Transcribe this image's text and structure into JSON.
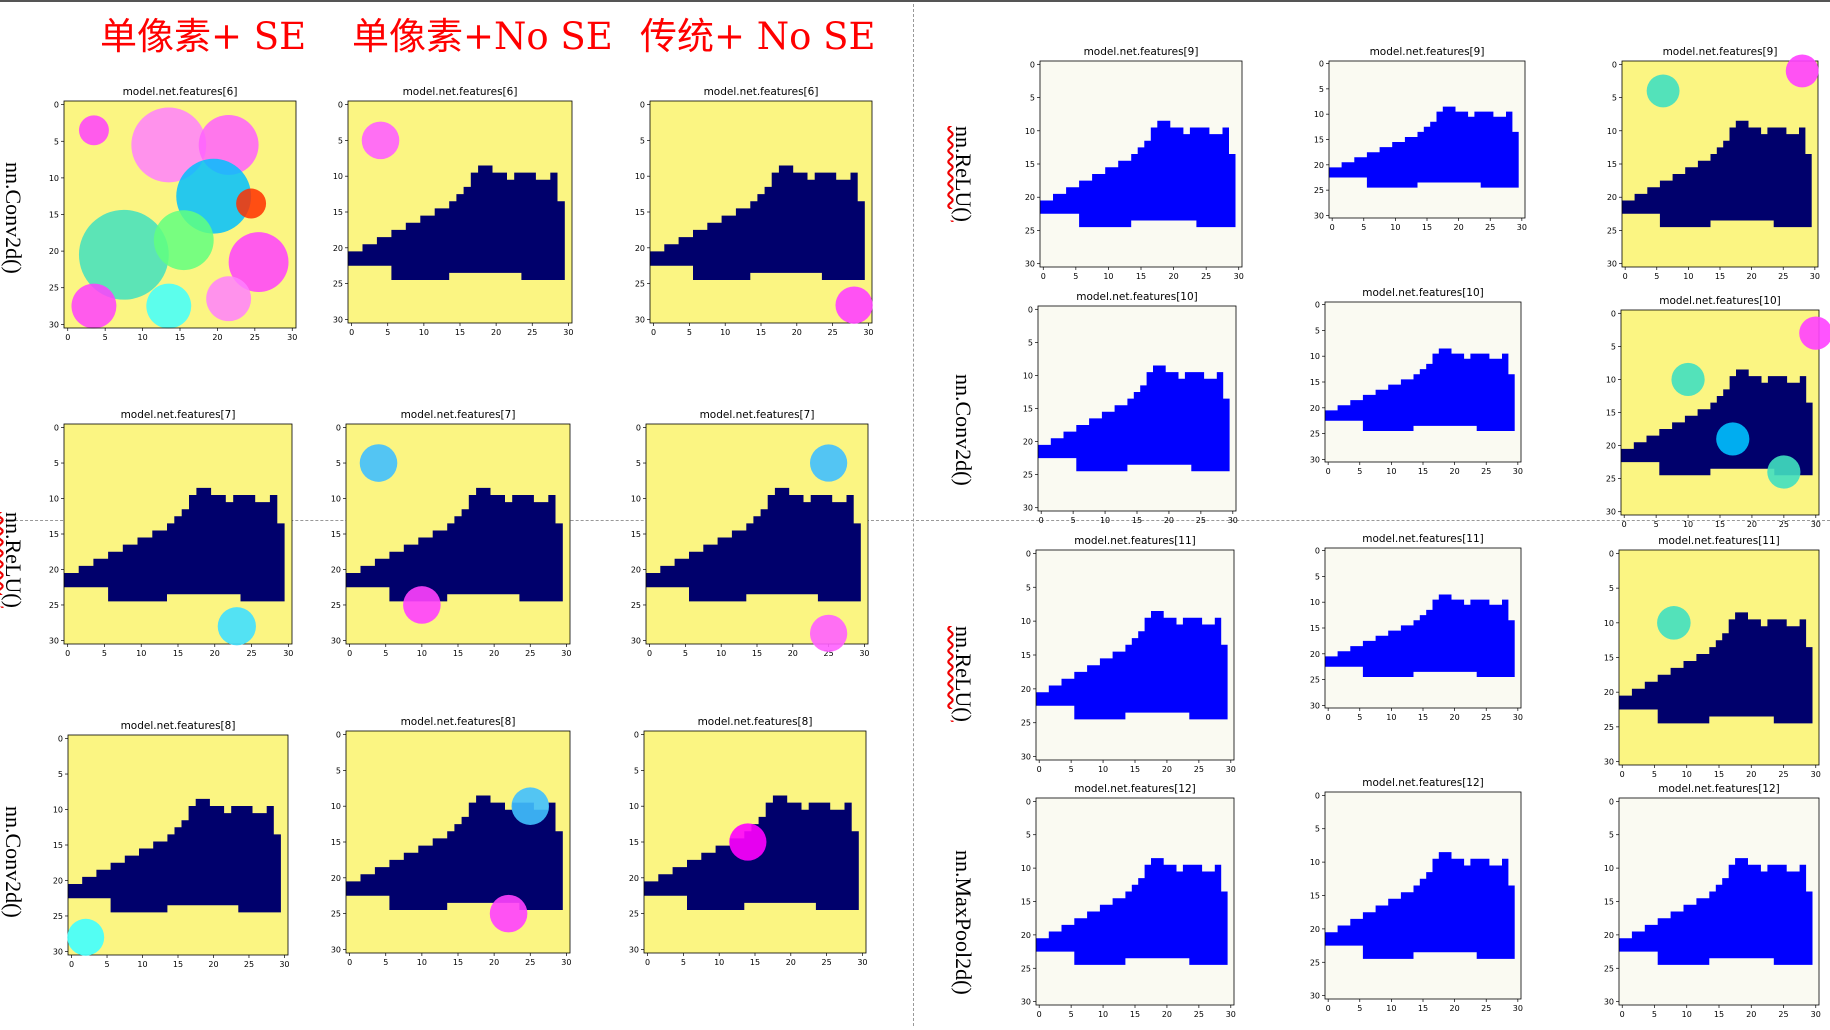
{
  "column_headers": [
    "单像素+ SE",
    "单像素+No SE",
    "传统+ No SE"
  ],
  "left_row_labels": [
    "nn.Conv2d()",
    "nn.ReLU()",
    "nn.Conv2d()"
  ],
  "right_row_labels": [
    "nn.ReLU()",
    "nn.Conv2d()",
    "nn.ReLU()",
    "nn.MaxPool2d()"
  ],
  "colors": {
    "header": "#ff0000",
    "yellow": "#fbf582",
    "navy": "#00006c",
    "blue": "#0000ff",
    "offwhite": "#fafaf2"
  },
  "chart_data": [
    {
      "type": "heatmap",
      "title": "model.net.features[6]",
      "xlim": [
        0,
        31
      ],
      "ylim": [
        31,
        0
      ],
      "xticks": [
        0,
        5,
        10,
        15,
        20,
        25,
        30
      ],
      "yticks": [
        0,
        5,
        10,
        15,
        20,
        25,
        30
      ],
      "colormap": "gist_ncar"
    },
    {
      "type": "heatmap",
      "title": "model.net.features[6]",
      "xlim": [
        0,
        31
      ],
      "ylim": [
        31,
        0
      ],
      "xticks": [
        0,
        5,
        10,
        15,
        20,
        25,
        30
      ],
      "yticks": [
        0,
        5,
        10,
        15,
        20,
        25,
        30
      ],
      "colormap": "gist_ncar"
    },
    {
      "type": "heatmap",
      "title": "model.net.features[6]",
      "xlim": [
        0,
        31
      ],
      "ylim": [
        31,
        0
      ],
      "xticks": [
        0,
        5,
        10,
        15,
        20,
        25,
        30
      ],
      "yticks": [
        0,
        5,
        10,
        15,
        20,
        25,
        30
      ],
      "colormap": "gist_ncar"
    },
    {
      "type": "heatmap",
      "title": "model.net.features[7]",
      "xlim": [
        0,
        31
      ],
      "ylim": [
        31,
        0
      ],
      "xticks": [
        0,
        5,
        10,
        15,
        20,
        25,
        30
      ],
      "yticks": [
        0,
        5,
        10,
        15,
        20,
        25,
        30
      ],
      "colormap": "gist_ncar"
    },
    {
      "type": "heatmap",
      "title": "model.net.features[7]",
      "xlim": [
        0,
        31
      ],
      "ylim": [
        31,
        0
      ],
      "xticks": [
        0,
        5,
        10,
        15,
        20,
        25,
        30
      ],
      "yticks": [
        0,
        5,
        10,
        15,
        20,
        25,
        30
      ],
      "colormap": "gist_ncar"
    },
    {
      "type": "heatmap",
      "title": "model.net.features[7]",
      "xlim": [
        0,
        31
      ],
      "ylim": [
        31,
        0
      ],
      "xticks": [
        0,
        5,
        10,
        15,
        20,
        25,
        30
      ],
      "yticks": [
        0,
        5,
        10,
        15,
        20,
        25,
        30
      ],
      "colormap": "gist_ncar"
    },
    {
      "type": "heatmap",
      "title": "model.net.features[8]",
      "xlim": [
        0,
        31
      ],
      "ylim": [
        31,
        0
      ],
      "xticks": [
        0,
        5,
        10,
        15,
        20,
        25,
        30
      ],
      "yticks": [
        0,
        5,
        10,
        15,
        20,
        25,
        30
      ],
      "colormap": "gist_ncar"
    },
    {
      "type": "heatmap",
      "title": "model.net.features[8]",
      "xlim": [
        0,
        31
      ],
      "ylim": [
        31,
        0
      ],
      "xticks": [
        0,
        5,
        10,
        15,
        20,
        25,
        30
      ],
      "yticks": [
        0,
        5,
        10,
        15,
        20,
        25,
        30
      ],
      "colormap": "gist_ncar"
    },
    {
      "type": "heatmap",
      "title": "model.net.features[8]",
      "xlim": [
        0,
        31
      ],
      "ylim": [
        31,
        0
      ],
      "xticks": [
        0,
        5,
        10,
        15,
        20,
        25,
        30
      ],
      "yticks": [
        0,
        5,
        10,
        15,
        20,
        25,
        30
      ],
      "colormap": "gist_ncar"
    },
    {
      "type": "heatmap",
      "title": "model.net.features[9]",
      "xlim": [
        0,
        31
      ],
      "ylim": [
        31,
        0
      ],
      "xticks": [
        0,
        5,
        10,
        15,
        20,
        25,
        30
      ],
      "yticks": [
        0,
        5,
        10,
        15,
        20,
        25,
        30
      ],
      "colormap": "bwr"
    },
    {
      "type": "heatmap",
      "title": "model.net.features[9]",
      "xlim": [
        0,
        31
      ],
      "ylim": [
        31,
        0
      ],
      "xticks": [
        0,
        5,
        10,
        15,
        20,
        25,
        30
      ],
      "yticks": [
        0,
        5,
        10,
        15,
        20,
        25,
        30
      ],
      "colormap": "bwr"
    },
    {
      "type": "heatmap",
      "title": "model.net.features[9]",
      "xlim": [
        0,
        31
      ],
      "ylim": [
        31,
        0
      ],
      "xticks": [
        0,
        5,
        10,
        15,
        20,
        25,
        30
      ],
      "yticks": [
        0,
        5,
        10,
        15,
        20,
        25,
        30
      ],
      "colormap": "gist_ncar"
    },
    {
      "type": "heatmap",
      "title": "model.net.features[10]",
      "xlim": [
        0,
        31
      ],
      "ylim": [
        31,
        0
      ],
      "xticks": [
        0,
        5,
        10,
        15,
        20,
        25,
        30
      ],
      "yticks": [
        0,
        5,
        10,
        15,
        20,
        25,
        30
      ],
      "colormap": "bwr"
    },
    {
      "type": "heatmap",
      "title": "model.net.features[10]",
      "xlim": [
        0,
        31
      ],
      "ylim": [
        31,
        0
      ],
      "xticks": [
        0,
        5,
        10,
        15,
        20,
        25,
        30
      ],
      "yticks": [
        0,
        5,
        10,
        15,
        20,
        25,
        30
      ],
      "colormap": "bwr"
    },
    {
      "type": "heatmap",
      "title": "model.net.features[10]",
      "xlim": [
        0,
        31
      ],
      "ylim": [
        31,
        0
      ],
      "xticks": [
        0,
        5,
        10,
        15,
        20,
        25,
        30
      ],
      "yticks": [
        0,
        5,
        10,
        15,
        20,
        25,
        30
      ],
      "colormap": "gist_ncar"
    },
    {
      "type": "heatmap",
      "title": "model.net.features[11]",
      "xlim": [
        0,
        31
      ],
      "ylim": [
        31,
        0
      ],
      "xticks": [
        0,
        5,
        10,
        15,
        20,
        25,
        30
      ],
      "yticks": [
        0,
        5,
        10,
        15,
        20,
        25,
        30
      ],
      "colormap": "bwr"
    },
    {
      "type": "heatmap",
      "title": "model.net.features[11]",
      "xlim": [
        0,
        31
      ],
      "ylim": [
        31,
        0
      ],
      "xticks": [
        0,
        5,
        10,
        15,
        20,
        25,
        30
      ],
      "yticks": [
        0,
        5,
        10,
        15,
        20,
        25,
        30
      ],
      "colormap": "bwr"
    },
    {
      "type": "heatmap",
      "title": "model.net.features[11]",
      "xlim": [
        0,
        31
      ],
      "ylim": [
        31,
        0
      ],
      "xticks": [
        0,
        5,
        10,
        15,
        20,
        25,
        30
      ],
      "yticks": [
        0,
        5,
        10,
        15,
        20,
        25,
        30
      ],
      "colormap": "gist_ncar"
    },
    {
      "type": "heatmap",
      "title": "model.net.features[12]",
      "xlim": [
        0,
        31
      ],
      "ylim": [
        31,
        0
      ],
      "xticks": [
        0,
        5,
        10,
        15,
        20,
        25,
        30
      ],
      "yticks": [
        0,
        5,
        10,
        15,
        20,
        25,
        30
      ],
      "colormap": "bwr"
    },
    {
      "type": "heatmap",
      "title": "model.net.features[12]",
      "xlim": [
        0,
        31
      ],
      "ylim": [
        31,
        0
      ],
      "xticks": [
        0,
        5,
        10,
        15,
        20,
        25,
        30
      ],
      "yticks": [
        0,
        5,
        10,
        15,
        20,
        25,
        30
      ],
      "colormap": "bwr"
    },
    {
      "type": "heatmap",
      "title": "model.net.features[12]",
      "xlim": [
        0,
        31
      ],
      "ylim": [
        31,
        0
      ],
      "xticks": [
        0,
        5,
        10,
        15,
        20,
        25,
        30
      ],
      "yticks": [
        0,
        5,
        10,
        15,
        20,
        25,
        30
      ],
      "colormap": "bwr"
    }
  ]
}
